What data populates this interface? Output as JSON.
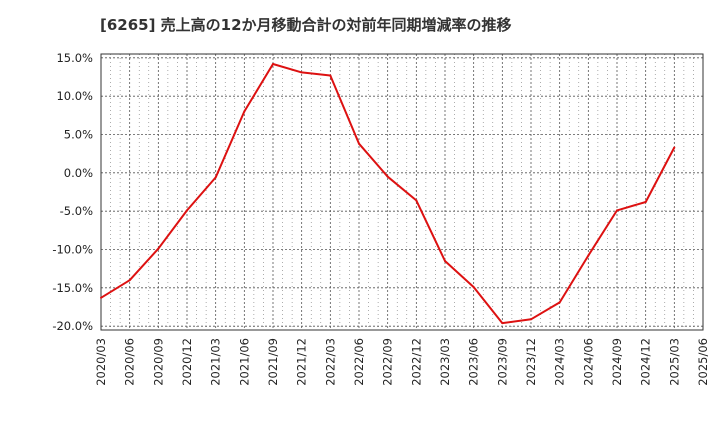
{
  "chart_data": {
    "type": "line",
    "title": "[6265]  売上高の12か月移動合計の対前年同期増減率の推移",
    "xlabel": "",
    "ylabel": "",
    "ylim": [
      -20.5,
      15.5
    ],
    "y_ticks": [
      15.0,
      10.0,
      5.0,
      0.0,
      -5.0,
      -10.0,
      -15.0,
      -20.0
    ],
    "y_tick_labels": [
      "15.0%",
      "10.0%",
      "5.0%",
      "0.0%",
      "-5.0%",
      "-10.0%",
      "-15.0%",
      "-20.0%"
    ],
    "x_tick_labels": [
      "2020/03",
      "2020/06",
      "2020/09",
      "2020/12",
      "2021/03",
      "2021/06",
      "2021/09",
      "2021/12",
      "2022/03",
      "2022/06",
      "2022/09",
      "2022/12",
      "2023/03",
      "2023/06",
      "2023/09",
      "2023/12",
      "2024/03",
      "2024/06",
      "2024/09",
      "2024/12",
      "2025/03",
      "2025/06"
    ],
    "grid": true,
    "series": [
      {
        "name": "対前年同期増減率",
        "color": "#dd1111",
        "x": [
          "2020/03",
          "2020/06",
          "2020/09",
          "2020/12",
          "2021/03",
          "2021/06",
          "2021/09",
          "2021/12",
          "2022/03",
          "2022/06",
          "2022/09",
          "2022/12",
          "2023/03",
          "2023/06",
          "2023/09",
          "2023/12",
          "2024/03",
          "2024/06",
          "2024/09",
          "2024/12",
          "2025/03"
        ],
        "values": [
          -16.3,
          -14.0,
          -9.9,
          -4.9,
          -0.6,
          8.0,
          14.2,
          13.1,
          12.7,
          3.8,
          -0.5,
          -3.6,
          -11.5,
          -14.9,
          -19.6,
          -19.1,
          -16.9,
          -10.8,
          -4.9,
          -3.8,
          3.3
        ]
      }
    ]
  }
}
